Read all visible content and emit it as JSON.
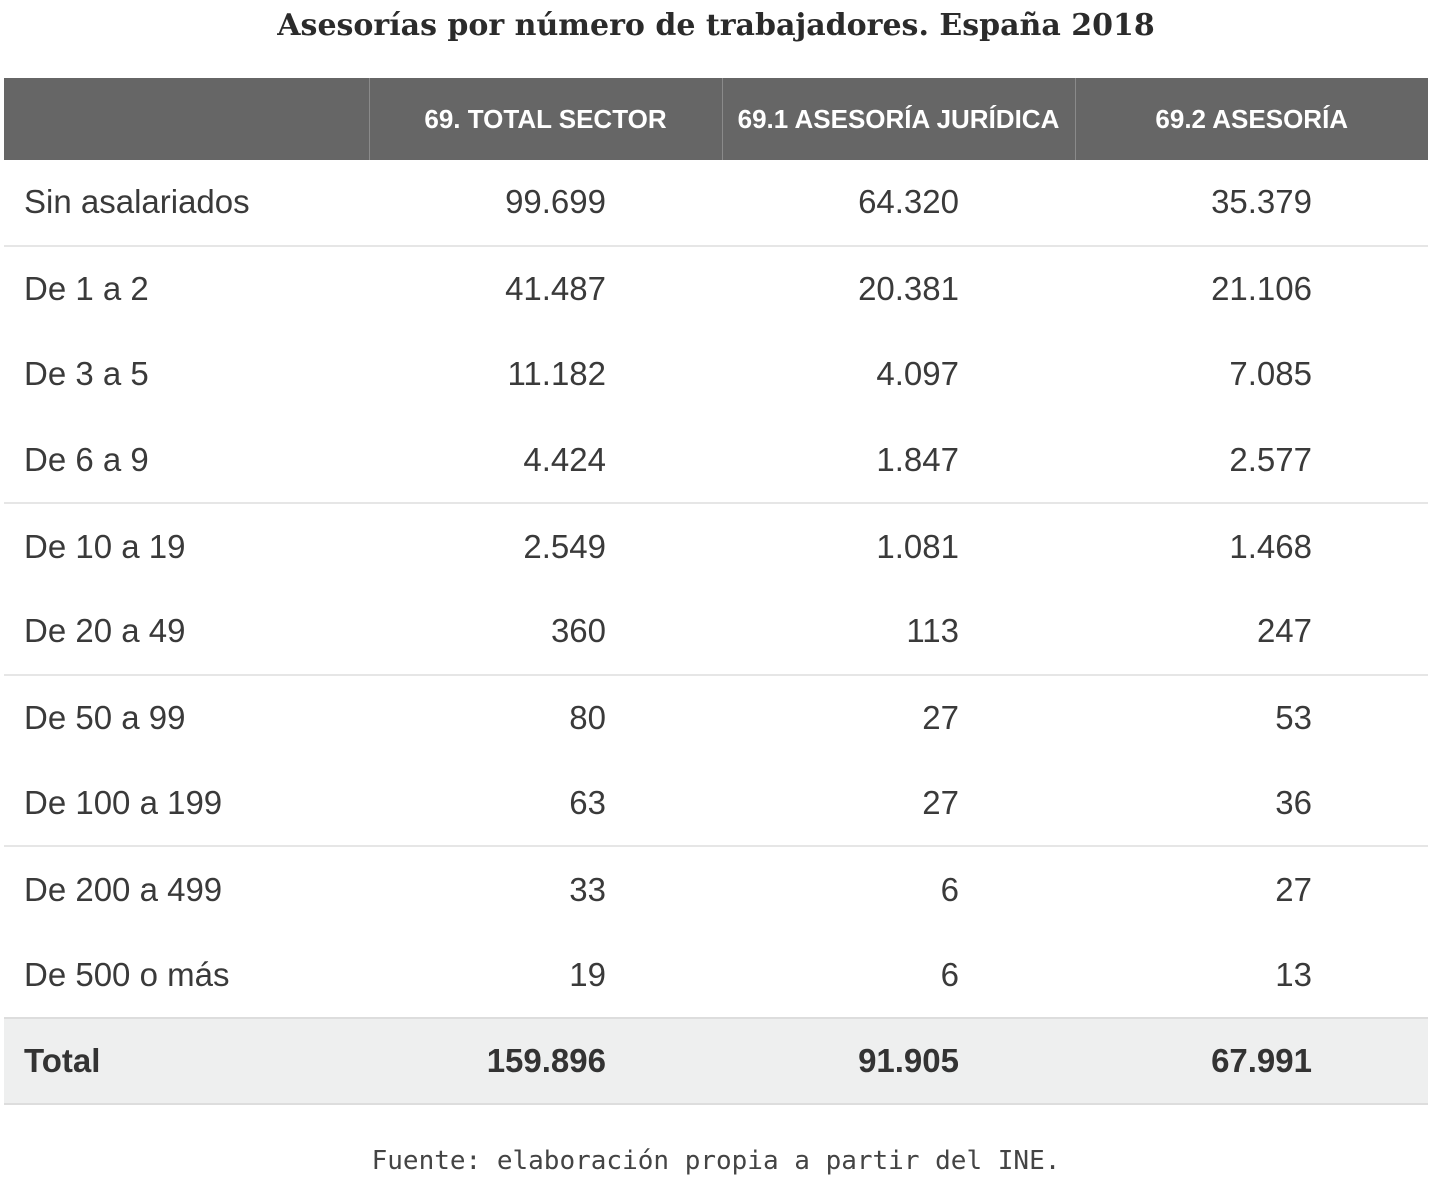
{
  "title": "Asesorías por número de trabajadores. España 2018",
  "table": {
    "headers": [
      "",
      "69. TOTAL SECTOR",
      "69.1 ASESORÍA JURÍDICA",
      "69.2 ASESORÍA"
    ],
    "rows": [
      [
        "Sin asalariados",
        "99.699",
        "64.320",
        "35.379"
      ],
      [
        "De 1 a 2",
        "41.487",
        "20.381",
        "21.106"
      ],
      [
        "De 3 a 5",
        "11.182",
        "4.097",
        "7.085"
      ],
      [
        "De 6 a 9",
        "4.424",
        "1.847",
        "2.577"
      ],
      [
        "De 10 a 19",
        "2.549",
        "1.081",
        "1.468"
      ],
      [
        "De 20 a 49",
        "360",
        "113",
        "247"
      ],
      [
        "De 50 a 99",
        "80",
        "27",
        "53"
      ],
      [
        "De 100 a 199",
        "63",
        "27",
        "36"
      ],
      [
        "De 200 a 499",
        "33",
        "6",
        "27"
      ],
      [
        "De 500 o más",
        "19",
        "6",
        "13"
      ]
    ],
    "total": [
      "Total",
      "159.896",
      "91.905",
      "67.991"
    ]
  },
  "source": "Fuente: elaboración propia a partir del INE.",
  "colors": {
    "header_bg": "#666666",
    "header_text": "#ffffff",
    "total_bg": "#eeefef",
    "row_separator": "#e6e6e6"
  }
}
